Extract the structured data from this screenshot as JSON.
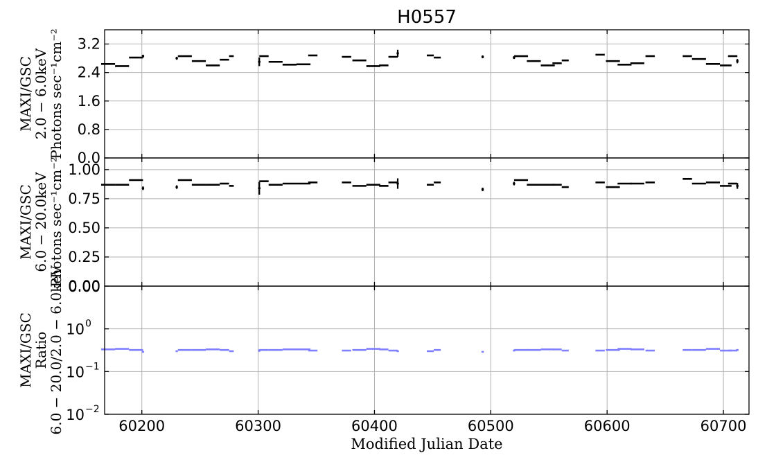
{
  "chart_data": {
    "type": "scatter",
    "title": "H0557",
    "xlabel": "Modified Julian Date",
    "xlim": [
      60168,
      60722
    ],
    "x_ticks": [
      "60200",
      "60300",
      "60400",
      "60500",
      "60600",
      "60700"
    ],
    "x_tick_values": [
      60200,
      60300,
      60400,
      60500,
      60600,
      60700
    ],
    "grid": true,
    "panels": [
      {
        "ylabel_lines": [
          "MAXI/GSC",
          "2.0 − 6.0keV",
          "Photons sec⁻¹cm⁻²"
        ],
        "ylim": [
          0,
          3.6
        ],
        "yscale": "linear",
        "y_ticks": [
          "0.0",
          "0.8",
          "1.6",
          "2.4",
          "3.2"
        ],
        "y_tick_values": [
          0,
          0.8,
          1.6,
          2.4,
          3.2
        ],
        "color": "#000000",
        "points": [
          [
            60171,
            2.64,
            6,
            0.02
          ],
          [
            60183,
            2.58,
            6,
            0.02
          ],
          [
            60195,
            2.82,
            6,
            0.02
          ],
          [
            60201,
            2.86,
            1,
            0.04
          ],
          [
            60230,
            2.8,
            1,
            0.04
          ],
          [
            60237,
            2.86,
            6,
            0.02
          ],
          [
            60249,
            2.72,
            6,
            0.02
          ],
          [
            60261,
            2.6,
            6,
            0.02
          ],
          [
            60271,
            2.76,
            4,
            0.02
          ],
          [
            60277,
            2.86,
            2,
            0.02
          ],
          [
            60301,
            2.7,
            1,
            0.12
          ],
          [
            60305,
            2.86,
            4,
            0.02
          ],
          [
            60315,
            2.7,
            6,
            0.02
          ],
          [
            60327,
            2.62,
            6,
            0.02
          ],
          [
            60339,
            2.63,
            6,
            0.02
          ],
          [
            60347,
            2.88,
            4,
            0.02
          ],
          [
            60376,
            2.84,
            4,
            0.02
          ],
          [
            60387,
            2.74,
            6,
            0.02
          ],
          [
            60399,
            2.58,
            6,
            0.02
          ],
          [
            60408,
            2.6,
            4,
            0.02
          ],
          [
            60416,
            2.84,
            4,
            0.02
          ],
          [
            60420,
            2.94,
            1,
            0.1
          ],
          [
            60448,
            2.88,
            3,
            0.02
          ],
          [
            60454,
            2.82,
            3,
            0.02
          ],
          [
            60493,
            2.84,
            1,
            0.04
          ],
          [
            60520,
            2.82,
            1,
            0.04
          ],
          [
            60526,
            2.86,
            6,
            0.02
          ],
          [
            60537,
            2.72,
            6,
            0.02
          ],
          [
            60549,
            2.6,
            6,
            0.02
          ],
          [
            60557,
            2.66,
            4,
            0.02
          ],
          [
            60564,
            2.74,
            3,
            0.02
          ],
          [
            60594,
            2.9,
            4,
            0.02
          ],
          [
            60605,
            2.72,
            6,
            0.02
          ],
          [
            60615,
            2.62,
            6,
            0.02
          ],
          [
            60626,
            2.66,
            6,
            0.02
          ],
          [
            60637,
            2.86,
            4,
            0.02
          ],
          [
            60669,
            2.86,
            4,
            0.02
          ],
          [
            60679,
            2.78,
            6,
            0.02
          ],
          [
            60691,
            2.64,
            6,
            0.02
          ],
          [
            60702,
            2.6,
            5,
            0.02
          ],
          [
            60708,
            2.86,
            4,
            0.02
          ],
          [
            60712,
            2.72,
            1,
            0.06
          ]
        ]
      },
      {
        "ylabel_lines": [
          "MAXI/GSC",
          "6.0 − 20.0keV",
          "Photons sec⁻¹cm⁻²"
        ],
        "ylim": [
          0,
          1.1
        ],
        "yscale": "linear",
        "y_ticks": [
          "0.00",
          "0.25",
          "0.50",
          "0.75",
          "1.00"
        ],
        "y_tick_values": [
          0,
          0.25,
          0.5,
          0.75,
          1.0
        ],
        "color": "#000000",
        "points": [
          [
            60171,
            0.87,
            6,
            0.005
          ],
          [
            60183,
            0.87,
            6,
            0.005
          ],
          [
            60195,
            0.91,
            6,
            0.005
          ],
          [
            60201,
            0.84,
            1,
            0.015
          ],
          [
            60230,
            0.85,
            1,
            0.015
          ],
          [
            60237,
            0.91,
            6,
            0.005
          ],
          [
            60249,
            0.87,
            6,
            0.005
          ],
          [
            60261,
            0.87,
            6,
            0.005
          ],
          [
            60271,
            0.88,
            4,
            0.005
          ],
          [
            60277,
            0.86,
            2,
            0.005
          ],
          [
            60301,
            0.84,
            1,
            0.055
          ],
          [
            60305,
            0.9,
            4,
            0.005
          ],
          [
            60315,
            0.87,
            6,
            0.005
          ],
          [
            60327,
            0.88,
            6,
            0.005
          ],
          [
            60339,
            0.88,
            6,
            0.005
          ],
          [
            60347,
            0.89,
            4,
            0.005
          ],
          [
            60376,
            0.89,
            4,
            0.005
          ],
          [
            60387,
            0.86,
            6,
            0.005
          ],
          [
            60399,
            0.87,
            6,
            0.005
          ],
          [
            60408,
            0.86,
            4,
            0.005
          ],
          [
            60416,
            0.89,
            4,
            0.005
          ],
          [
            60420,
            0.88,
            1,
            0.045
          ],
          [
            60448,
            0.87,
            3,
            0.005
          ],
          [
            60454,
            0.89,
            3,
            0.005
          ],
          [
            60493,
            0.83,
            1,
            0.015
          ],
          [
            60520,
            0.88,
            1,
            0.015
          ],
          [
            60526,
            0.91,
            6,
            0.005
          ],
          [
            60537,
            0.87,
            6,
            0.005
          ],
          [
            60549,
            0.87,
            6,
            0.005
          ],
          [
            60557,
            0.87,
            4,
            0.005
          ],
          [
            60564,
            0.85,
            3,
            0.005
          ],
          [
            60594,
            0.89,
            4,
            0.005
          ],
          [
            60605,
            0.85,
            6,
            0.005
          ],
          [
            60615,
            0.88,
            6,
            0.005
          ],
          [
            60626,
            0.88,
            6,
            0.005
          ],
          [
            60637,
            0.89,
            4,
            0.005
          ],
          [
            60669,
            0.92,
            4,
            0.005
          ],
          [
            60679,
            0.88,
            6,
            0.005
          ],
          [
            60691,
            0.89,
            6,
            0.005
          ],
          [
            60702,
            0.86,
            5,
            0.005
          ],
          [
            60708,
            0.88,
            4,
            0.005
          ],
          [
            60712,
            0.86,
            1,
            0.025
          ]
        ]
      },
      {
        "ylabel_lines": [
          "MAXI/GSC",
          "Ratio",
          "6.0 − 20.0/2.0 − 6.0keV"
        ],
        "ylim": [
          0.01,
          10
        ],
        "yscale": "log",
        "y_ticks": [
          {
            "base": "10",
            "exp": "−2"
          },
          {
            "base": "10",
            "exp": "−1"
          },
          {
            "base": "10",
            "exp": "0"
          }
        ],
        "y_tick_values": [
          0.01,
          0.1,
          1
        ],
        "top_tick_label": "0.00",
        "color": "#8080ff",
        "points": [
          [
            60171,
            0.33,
            6,
            0
          ],
          [
            60183,
            0.34,
            6,
            0
          ],
          [
            60195,
            0.32,
            6,
            0
          ],
          [
            60201,
            0.29,
            1,
            0.01
          ],
          [
            60230,
            0.3,
            1,
            0.01
          ],
          [
            60237,
            0.32,
            6,
            0
          ],
          [
            60249,
            0.32,
            6,
            0
          ],
          [
            60261,
            0.33,
            6,
            0
          ],
          [
            60271,
            0.32,
            4,
            0
          ],
          [
            60277,
            0.3,
            2,
            0
          ],
          [
            60301,
            0.31,
            1,
            0.02
          ],
          [
            60305,
            0.32,
            4,
            0
          ],
          [
            60315,
            0.32,
            6,
            0
          ],
          [
            60327,
            0.33,
            6,
            0
          ],
          [
            60339,
            0.33,
            6,
            0
          ],
          [
            60347,
            0.31,
            4,
            0
          ],
          [
            60376,
            0.31,
            4,
            0
          ],
          [
            60387,
            0.32,
            6,
            0
          ],
          [
            60399,
            0.34,
            6,
            0
          ],
          [
            60408,
            0.33,
            4,
            0
          ],
          [
            60416,
            0.31,
            4,
            0
          ],
          [
            60420,
            0.3,
            1,
            0.01
          ],
          [
            60448,
            0.3,
            3,
            0
          ],
          [
            60454,
            0.32,
            3,
            0
          ],
          [
            60493,
            0.29,
            1,
            0.01
          ],
          [
            60520,
            0.31,
            1,
            0.01
          ],
          [
            60526,
            0.32,
            6,
            0
          ],
          [
            60537,
            0.32,
            6,
            0
          ],
          [
            60549,
            0.33,
            6,
            0
          ],
          [
            60557,
            0.33,
            4,
            0
          ],
          [
            60564,
            0.31,
            3,
            0
          ],
          [
            60594,
            0.31,
            4,
            0
          ],
          [
            60605,
            0.32,
            6,
            0
          ],
          [
            60615,
            0.34,
            6,
            0
          ],
          [
            60626,
            0.33,
            6,
            0
          ],
          [
            60637,
            0.31,
            4,
            0
          ],
          [
            60669,
            0.32,
            4,
            0
          ],
          [
            60679,
            0.32,
            6,
            0
          ],
          [
            60691,
            0.34,
            6,
            0
          ],
          [
            60702,
            0.31,
            5,
            0
          ],
          [
            60708,
            0.31,
            4,
            0
          ],
          [
            60712,
            0.32,
            1,
            0.01
          ]
        ]
      }
    ]
  }
}
